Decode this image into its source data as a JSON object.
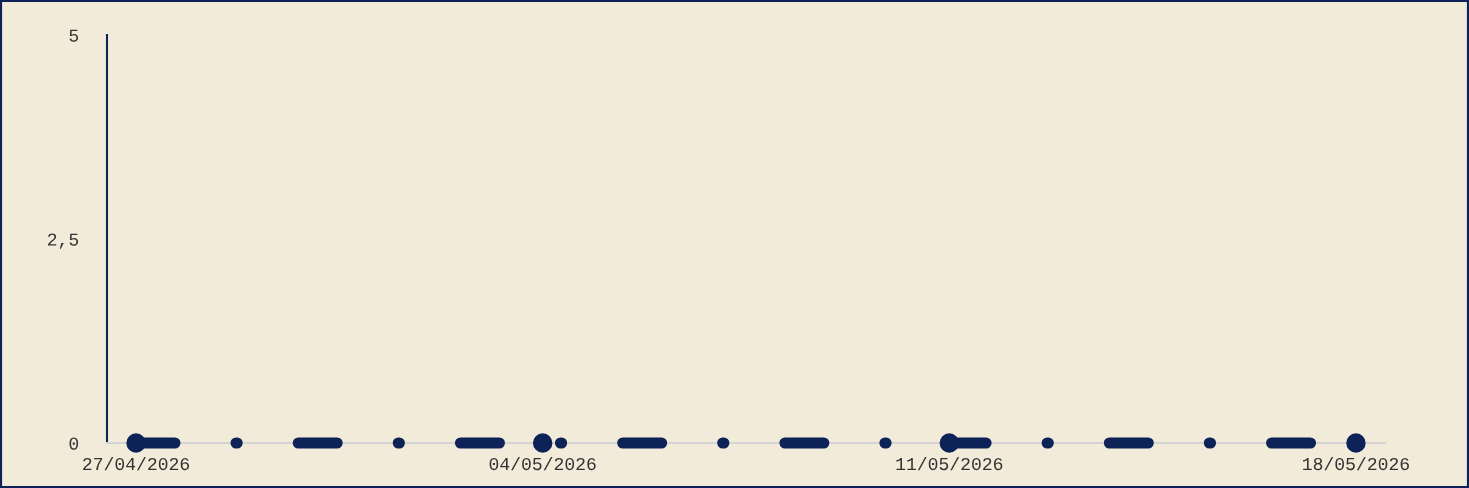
{
  "chart_data": {
    "type": "line",
    "x": [
      "2026-04-27",
      "2026-05-04",
      "2026-05-11",
      "2026-05-18"
    ],
    "series": [
      {
        "color": "#0d2257",
        "values": [
          0,
          0,
          0,
          0
        ]
      }
    ],
    "xlim": [
      "2026-04-26T12:00",
      "2026-05-18T12:00"
    ],
    "xticks": [
      {
        "value": "2026-04-27",
        "label": "27/04/2026"
      },
      {
        "value": "2026-05-04",
        "label": "04/05/2026"
      },
      {
        "value": "2026-05-11",
        "label": "11/05/2026"
      },
      {
        "value": "2026-05-18",
        "label": "18/05/2026"
      }
    ],
    "ylim": [
      0,
      5
    ],
    "yticks": [
      0,
      {
        "value": 2.5,
        "label": "2,5"
      },
      5
    ],
    "marker": "circle",
    "line_style": "dashdot",
    "grid": false
  }
}
